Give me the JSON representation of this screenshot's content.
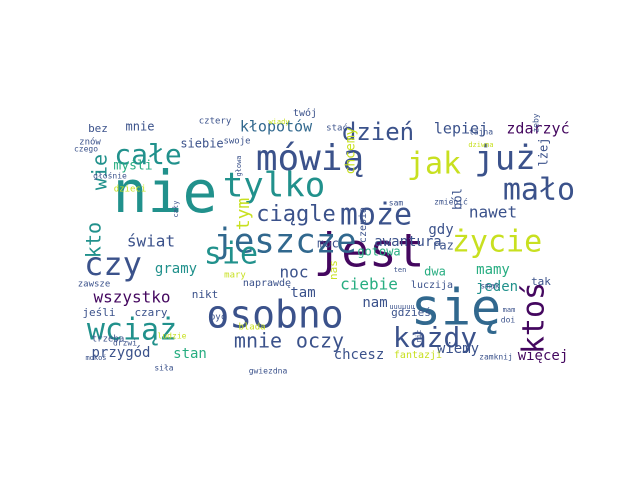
{
  "palette": {
    "purple": "#44075f",
    "indigo": "#3b528b",
    "blue": "#31688e",
    "teal": "#21918c",
    "green": "#27ad81",
    "lime": "#5ec962",
    "yellow": "#c8e020",
    "gold": "#e5e419"
  },
  "words": [
    {
      "text": "nie",
      "color": "#21918c",
      "size": 7
    },
    {
      "text": "się",
      "color": "#31688e",
      "size": 7
    },
    {
      "text": "jest",
      "color": "#44075f",
      "size": 6
    },
    {
      "text": "osobno",
      "color": "#3b528b",
      "size": 5
    },
    {
      "text": "jeszcze",
      "color": "#31688e",
      "size": 5
    },
    {
      "text": "mówią",
      "color": "#3b528b",
      "size": 5
    },
    {
      "text": "tylko",
      "color": "#21918c",
      "size": 5
    },
    {
      "text": "może",
      "color": "#3b528b",
      "size": 4
    },
    {
      "text": "już",
      "color": "#3b528b",
      "size": 4
    },
    {
      "text": "jak",
      "color": "#c8e020",
      "size": 4
    },
    {
      "text": "życie",
      "color": "#c8e020",
      "size": 4
    },
    {
      "text": "mało",
      "color": "#3b528b",
      "size": 4
    },
    {
      "text": "czy",
      "color": "#3b528b",
      "size": 4
    },
    {
      "text": "wciąż",
      "color": "#21918c",
      "size": 4
    },
    {
      "text": "całe",
      "color": "#21918c",
      "size": 4
    },
    {
      "text": "ktoś",
      "color": "#44075f",
      "size": 4
    },
    {
      "text": "każdy",
      "color": "#3b528b",
      "size": 4
    },
    {
      "text": "sie",
      "color": "#21918c",
      "size": 4
    },
    {
      "text": "dzień",
      "color": "#3b528b",
      "size": 3
    },
    {
      "text": "mnie",
      "color": "#3b528b",
      "size": 3
    },
    {
      "text": "kto",
      "color": "#21918c",
      "size": 3
    },
    {
      "text": "ciągle",
      "color": "#3b528b",
      "size": 3
    },
    {
      "text": "tym",
      "color": "#c8e020",
      "size": 3
    },
    {
      "text": "wie",
      "color": "#21918c",
      "size": 3
    },
    {
      "text": "oczy",
      "color": "#3b528b",
      "size": 3
    },
    {
      "text": "noc",
      "color": "#3b528b",
      "size": 2
    },
    {
      "text": "świat",
      "color": "#3b528b",
      "size": 2
    },
    {
      "text": "nawet",
      "color": "#3b528b",
      "size": 2
    },
    {
      "text": "wszystko",
      "color": "#44075f",
      "size": 2
    },
    {
      "text": "ciebie",
      "color": "#27ad81",
      "size": 2
    },
    {
      "text": "lepiej",
      "color": "#3b528b",
      "size": 2
    },
    {
      "text": "zdarzyć",
      "color": "#44075f",
      "size": 2
    },
    {
      "text": "kłopotów",
      "color": "#31688e",
      "size": 2
    },
    {
      "text": "więcej",
      "color": "#44075f",
      "size": 2
    },
    {
      "text": "gramy",
      "color": "#21918c",
      "size": 2
    },
    {
      "text": "mamy",
      "color": "#27ad81",
      "size": 2
    },
    {
      "text": "jeden",
      "color": "#21918c",
      "size": 2
    },
    {
      "text": "awantura",
      "color": "#3b528b",
      "size": 2
    },
    {
      "text": "gdy",
      "color": "#3b528b",
      "size": 2
    },
    {
      "text": "wiemy",
      "color": "#3b528b",
      "size": 2
    },
    {
      "text": "chcesz",
      "color": "#3b528b",
      "size": 2
    },
    {
      "text": "przygód",
      "color": "#3b528b",
      "size": 2
    },
    {
      "text": "stan",
      "color": "#27ad81",
      "size": 2
    },
    {
      "text": "nam",
      "color": "#3b528b",
      "size": 2
    },
    {
      "text": "tam",
      "color": "#3b528b",
      "size": 2
    },
    {
      "text": "chcemy",
      "color": "#c8e020",
      "size": 1
    },
    {
      "text": "ból",
      "color": "#3b528b",
      "size": 1
    },
    {
      "text": "lżej",
      "color": "#3b528b",
      "size": 1
    },
    {
      "text": "moc",
      "color": "#3b528b",
      "size": 1
    },
    {
      "text": "gotowa",
      "color": "#27ad81",
      "size": 1
    },
    {
      "text": "dwa",
      "color": "#27ad81",
      "size": 1
    },
    {
      "text": "raz",
      "color": "#3b528b",
      "size": 1
    },
    {
      "text": "mnie",
      "color": "#3b528b",
      "size": 1
    },
    {
      "text": "siebie",
      "color": "#3b528b",
      "size": 1
    },
    {
      "text": "myśli",
      "color": "#27ad81",
      "size": 1
    },
    {
      "text": "bez",
      "color": "#3b528b",
      "size": 1
    },
    {
      "text": "nikt",
      "color": "#3b528b",
      "size": 1
    },
    {
      "text": "jeśli",
      "color": "#3b528b",
      "size": 1
    },
    {
      "text": "czary",
      "color": "#3b528b",
      "size": 1
    },
    {
      "text": "gdzieś",
      "color": "#3b528b",
      "size": 1
    },
    {
      "text": "tak",
      "color": "#3b528b",
      "size": 1
    },
    {
      "text": "twój",
      "color": "#3b528b",
      "size": 1
    },
    {
      "text": "naprawdę",
      "color": "#3b528b",
      "size": 1
    },
    {
      "text": "nas",
      "color": "#c8e020",
      "size": 1
    },
    {
      "text": "czepia",
      "color": "#3b528b",
      "size": 1
    },
    {
      "text": "fantazji",
      "color": "#c8e020",
      "size": 0
    },
    {
      "text": "cztery",
      "color": "#3b528b",
      "size": 0
    },
    {
      "text": "stać",
      "color": "#3b528b",
      "size": 0
    },
    {
      "text": "swoje",
      "color": "#3b528b",
      "size": 0
    },
    {
      "text": "dzieci",
      "color": "#c8e020",
      "size": 0
    },
    {
      "text": "głośnie",
      "color": "#3b528b",
      "size": 0
    },
    {
      "text": "znów",
      "color": "#3b528b",
      "size": 0
    },
    {
      "text": "trzeba",
      "color": "#3b528b",
      "size": 0
    },
    {
      "text": "zawsze",
      "color": "#3b528b",
      "size": 0
    },
    {
      "text": "ludzie",
      "color": "#c8e020",
      "size": 0
    },
    {
      "text": "drzwi",
      "color": "#3b528b",
      "size": 0
    },
    {
      "text": "siła",
      "color": "#3b528b",
      "size": 0
    },
    {
      "text": "czego",
      "color": "#3b528b",
      "size": 0
    },
    {
      "text": "mokoś",
      "color": "#3b528b",
      "size": 0
    },
    {
      "text": "być",
      "color": "#3b528b",
      "size": 0
    },
    {
      "text": "mary",
      "color": "#c8e020",
      "size": 0
    },
    {
      "text": "wiady",
      "color": "#c8e020",
      "size": 0
    },
    {
      "text": "głowa",
      "color": "#3b528b",
      "size": 0
    },
    {
      "text": "cały",
      "color": "#3b528b",
      "size": 0
    },
    {
      "text": "blada",
      "color": "#c8e020",
      "size": 0
    },
    {
      "text": "gwiezdna",
      "color": "#3b528b",
      "size": 0
    },
    {
      "text": "sam",
      "color": "#3b528b",
      "size": 0
    },
    {
      "text": "ten",
      "color": "#3b528b",
      "size": 0
    },
    {
      "text": "zmienić",
      "color": "#3b528b",
      "size": 0
    },
    {
      "text": "tajna",
      "color": "#3b528b",
      "size": 0
    },
    {
      "text": "dziwna",
      "color": "#c8e020",
      "size": 0
    },
    {
      "text": "żeby",
      "color": "#3b528b",
      "size": 0
    },
    {
      "text": "luczija",
      "color": "#3b528b",
      "size": 0
    },
    {
      "text": "smak",
      "color": "#3b528b",
      "size": 0
    },
    {
      "text": "nic",
      "color": "#3b528b",
      "size": 0
    },
    {
      "text": "mam",
      "color": "#3b528b",
      "size": 0
    },
    {
      "text": "doi",
      "color": "#3b528b",
      "size": 0
    },
    {
      "text": "zamknij",
      "color": "#3b528b",
      "size": 0
    },
    {
      "text": "uuuuuu",
      "color": "#3b528b",
      "size": 0
    }
  ]
}
